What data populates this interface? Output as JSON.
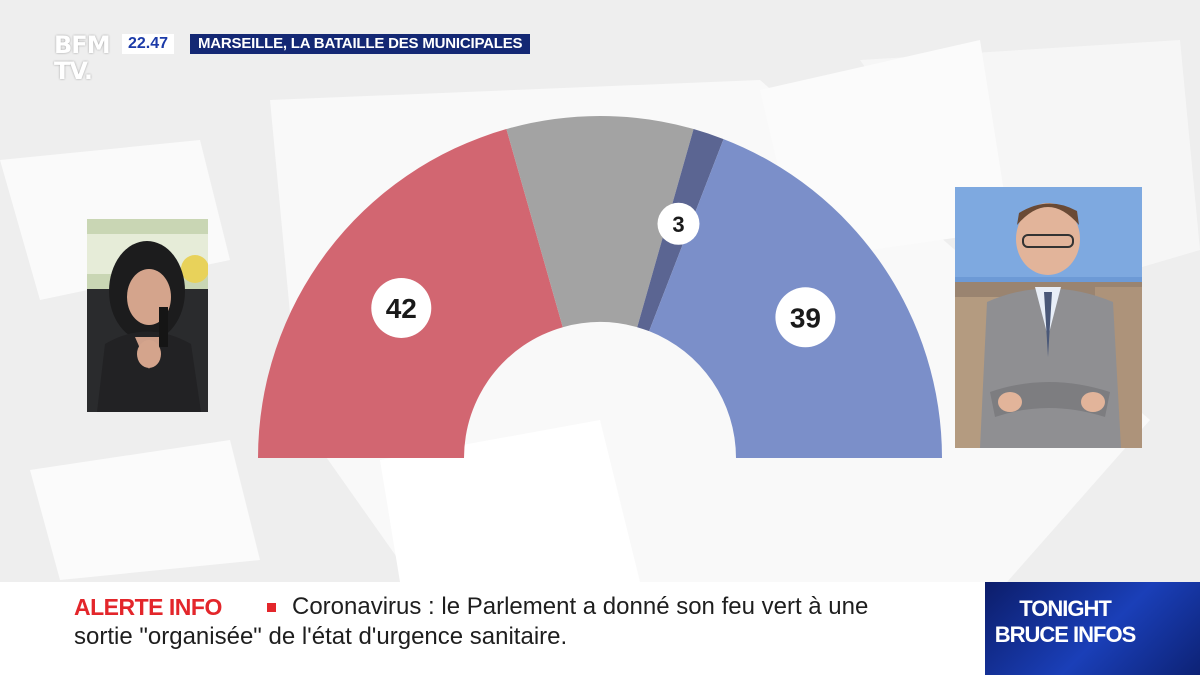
{
  "channel": {
    "logo_line1": "BFM",
    "logo_line2": "TV."
  },
  "header": {
    "time": "22.47",
    "banner": "MARSEILLE, LA BATAILLE DES MUNICIPALES"
  },
  "chart_data": {
    "type": "pie",
    "variant": "hemicycle",
    "title": "",
    "series": [
      {
        "label": "42",
        "value": 42,
        "color": "#d26671"
      },
      {
        "label": "",
        "value": 18,
        "color": "#a3a3a3"
      },
      {
        "label": "3",
        "value": 3,
        "color": "#5b6592"
      },
      {
        "label": "39",
        "value": 39,
        "color": "#7b8fc9"
      }
    ],
    "total": 101
  },
  "photos": {
    "left": "candidate-woman-photo",
    "right": "candidate-man-photo"
  },
  "ticker": {
    "label": "ALERTE INFO",
    "line1": "Coronavirus : le Parlement a donné son feu vert à une",
    "line2": "sortie \"organisée\" de l'état d'urgence sanitaire."
  },
  "promo": {
    "line1": "TONIGHT",
    "line2": "BRUCE INFOS"
  },
  "colors": {
    "alert": "#e3262b",
    "banner": "#142874"
  }
}
